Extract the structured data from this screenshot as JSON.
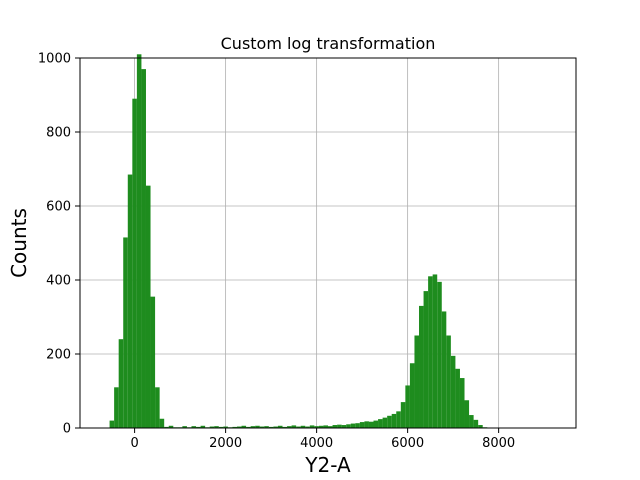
{
  "chart_data": {
    "type": "bar",
    "title": "Custom log transformation",
    "xlabel": "Y2-A",
    "ylabel": "Counts",
    "xlim": [
      -1200,
      9700
    ],
    "ylim": [
      0,
      1000
    ],
    "x_ticks": [
      0,
      2000,
      4000,
      6000,
      8000
    ],
    "y_ticks": [
      0,
      200,
      400,
      600,
      800,
      1000
    ],
    "grid": true,
    "bar_color": "#1e8c1e",
    "bin_width": 100,
    "bins": [
      {
        "x": -500,
        "y": 20
      },
      {
        "x": -400,
        "y": 110
      },
      {
        "x": -300,
        "y": 240
      },
      {
        "x": -200,
        "y": 515
      },
      {
        "x": -100,
        "y": 685
      },
      {
        "x": 0,
        "y": 890
      },
      {
        "x": 100,
        "y": 1010
      },
      {
        "x": 200,
        "y": 970
      },
      {
        "x": 300,
        "y": 655
      },
      {
        "x": 400,
        "y": 355
      },
      {
        "x": 500,
        "y": 110
      },
      {
        "x": 600,
        "y": 25
      },
      {
        "x": 700,
        "y": 3
      },
      {
        "x": 800,
        "y": 6
      },
      {
        "x": 900,
        "y": 2
      },
      {
        "x": 1000,
        "y": 2
      },
      {
        "x": 1100,
        "y": 5
      },
      {
        "x": 1200,
        "y": 2
      },
      {
        "x": 1300,
        "y": 5
      },
      {
        "x": 1400,
        "y": 3
      },
      {
        "x": 1500,
        "y": 6
      },
      {
        "x": 1600,
        "y": 2
      },
      {
        "x": 1700,
        "y": 4
      },
      {
        "x": 1800,
        "y": 5
      },
      {
        "x": 1900,
        "y": 3
      },
      {
        "x": 2000,
        "y": 4
      },
      {
        "x": 2100,
        "y": 2
      },
      {
        "x": 2200,
        "y": 3
      },
      {
        "x": 2300,
        "y": 4
      },
      {
        "x": 2400,
        "y": 6
      },
      {
        "x": 2500,
        "y": 3
      },
      {
        "x": 2600,
        "y": 5
      },
      {
        "x": 2700,
        "y": 6
      },
      {
        "x": 2800,
        "y": 4
      },
      {
        "x": 2900,
        "y": 5
      },
      {
        "x": 3000,
        "y": 3
      },
      {
        "x": 3100,
        "y": 4
      },
      {
        "x": 3200,
        "y": 6
      },
      {
        "x": 3300,
        "y": 3
      },
      {
        "x": 3400,
        "y": 5
      },
      {
        "x": 3500,
        "y": 7
      },
      {
        "x": 3600,
        "y": 4
      },
      {
        "x": 3700,
        "y": 6
      },
      {
        "x": 3800,
        "y": 4
      },
      {
        "x": 3900,
        "y": 7
      },
      {
        "x": 4000,
        "y": 5
      },
      {
        "x": 4100,
        "y": 6
      },
      {
        "x": 4200,
        "y": 7
      },
      {
        "x": 4300,
        "y": 5
      },
      {
        "x": 4400,
        "y": 8
      },
      {
        "x": 4500,
        "y": 9
      },
      {
        "x": 4600,
        "y": 8
      },
      {
        "x": 4700,
        "y": 10
      },
      {
        "x": 4800,
        "y": 12
      },
      {
        "x": 4900,
        "y": 13
      },
      {
        "x": 5000,
        "y": 16
      },
      {
        "x": 5100,
        "y": 18
      },
      {
        "x": 5200,
        "y": 17
      },
      {
        "x": 5300,
        "y": 20
      },
      {
        "x": 5400,
        "y": 24
      },
      {
        "x": 5500,
        "y": 28
      },
      {
        "x": 5600,
        "y": 33
      },
      {
        "x": 5700,
        "y": 38
      },
      {
        "x": 5800,
        "y": 45
      },
      {
        "x": 5900,
        "y": 70
      },
      {
        "x": 6000,
        "y": 115
      },
      {
        "x": 6100,
        "y": 175
      },
      {
        "x": 6200,
        "y": 250
      },
      {
        "x": 6300,
        "y": 330
      },
      {
        "x": 6400,
        "y": 370
      },
      {
        "x": 6500,
        "y": 410
      },
      {
        "x": 6600,
        "y": 415
      },
      {
        "x": 6700,
        "y": 395
      },
      {
        "x": 6800,
        "y": 315
      },
      {
        "x": 6900,
        "y": 250
      },
      {
        "x": 7000,
        "y": 195
      },
      {
        "x": 7100,
        "y": 160
      },
      {
        "x": 7200,
        "y": 135
      },
      {
        "x": 7300,
        "y": 75
      },
      {
        "x": 7400,
        "y": 35
      },
      {
        "x": 7500,
        "y": 22
      },
      {
        "x": 7600,
        "y": 8
      },
      {
        "x": 7700,
        "y": 2
      },
      {
        "x": 7800,
        "y": 1
      },
      {
        "x": 7900,
        "y": 1
      },
      {
        "x": 8000,
        "y": 1
      },
      {
        "x": 8100,
        "y": 1
      },
      {
        "x": 8200,
        "y": 1
      },
      {
        "x": 8300,
        "y": 1
      },
      {
        "x": 8400,
        "y": 1
      },
      {
        "x": 8500,
        "y": 1
      },
      {
        "x": 8600,
        "y": 1
      },
      {
        "x": 8700,
        "y": 1
      },
      {
        "x": 8800,
        "y": 1
      },
      {
        "x": 8900,
        "y": 1
      }
    ]
  }
}
